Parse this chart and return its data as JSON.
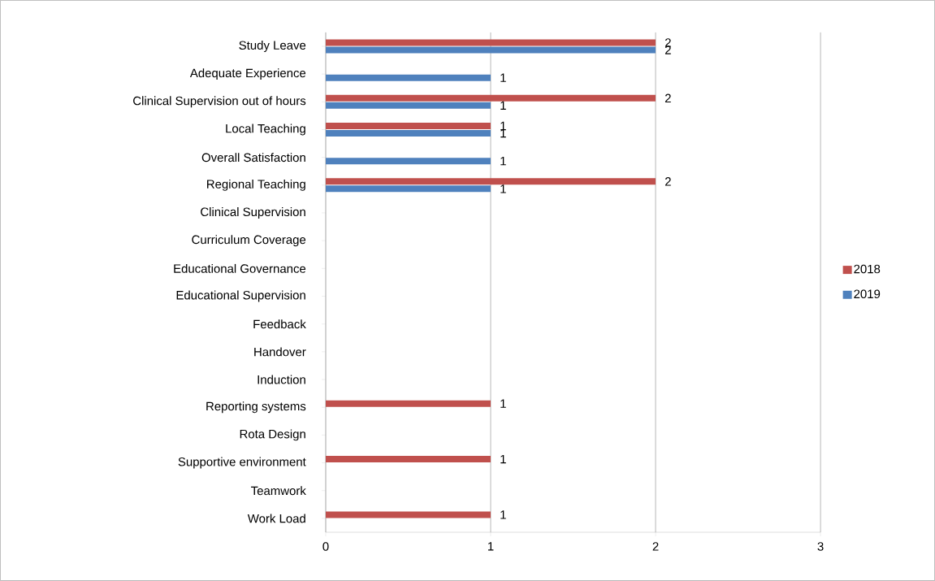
{
  "chart_data": {
    "type": "bar",
    "orientation": "horizontal",
    "categories": [
      "Study Leave",
      "Adequate Experience",
      "Clinical Supervision out of hours",
      "Local Teaching",
      "Overall Satisfaction",
      "Regional Teaching",
      "Clinical Supervision",
      "Curriculum Coverage",
      "Educational Governance",
      "Educational Supervision",
      "Feedback",
      "Handover",
      "Induction",
      "Reporting systems",
      "Rota Design",
      "Supportive environment",
      "Teamwork",
      "Work Load"
    ],
    "series": [
      {
        "name": "2018",
        "color": "#c0504d",
        "values": [
          2,
          null,
          2,
          1,
          null,
          2,
          null,
          null,
          null,
          null,
          null,
          null,
          null,
          1,
          null,
          1,
          null,
          1
        ]
      },
      {
        "name": "2019",
        "color": "#4f81bd",
        "values": [
          2,
          1,
          1,
          1,
          1,
          1,
          null,
          null,
          null,
          null,
          null,
          null,
          null,
          null,
          null,
          null,
          null,
          null
        ]
      }
    ],
    "xlim": [
      0,
      3
    ],
    "xticks": [
      0,
      1,
      2,
      3
    ],
    "grid": "x",
    "legend": "right",
    "data_labels": true
  }
}
